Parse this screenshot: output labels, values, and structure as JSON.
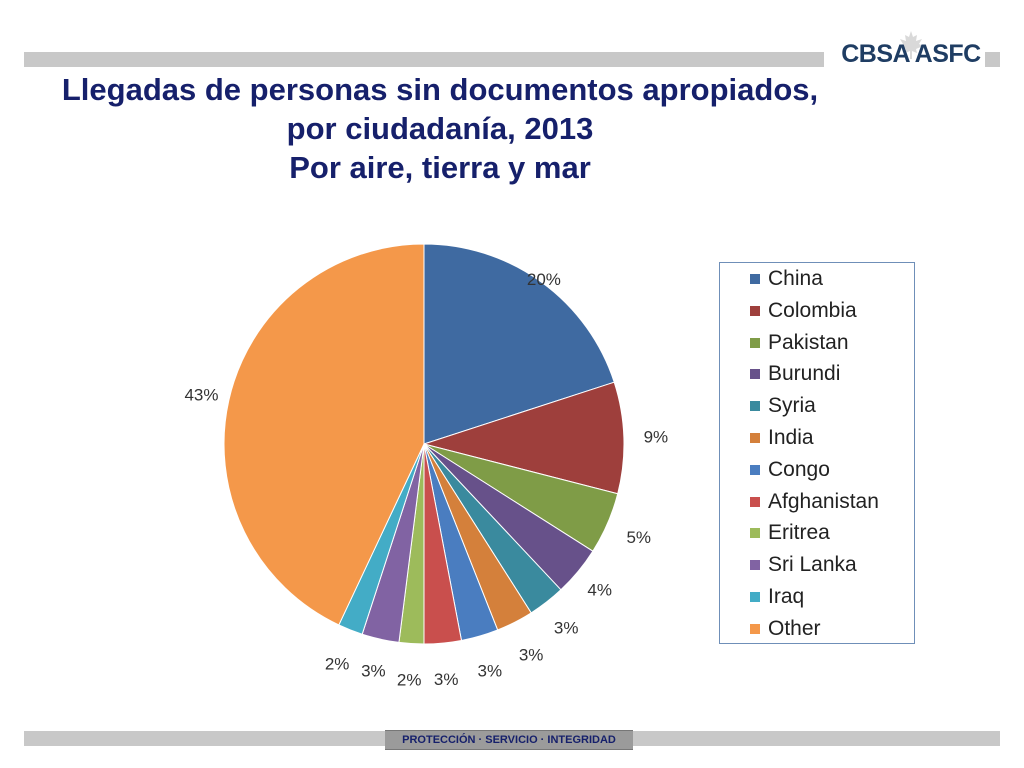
{
  "header": {
    "logo_text": "CBSA ASFC",
    "logo_icon": "maple-leaf-icon"
  },
  "title_lines": [
    "Llegadas de personas sin documentos apropiados,",
    "por ciudadanía, 2013",
    "Por aire, tierra y mar"
  ],
  "footer": {
    "motto": "PROTECCIÓN · SERVICIO · INTEGRIDAD"
  },
  "chart_data": {
    "type": "pie",
    "title": "Llegadas de personas sin documentos apropiados, por ciudadanía, 2013 Por aire, tierra y mar",
    "legend_position": "right",
    "slices": [
      {
        "name": "China",
        "value": 20,
        "label": "20%",
        "color": "#3f6aa1"
      },
      {
        "name": "Colombia",
        "value": 9,
        "label": "9%",
        "color": "#9e3f3c"
      },
      {
        "name": "Pakistan",
        "value": 5,
        "label": "5%",
        "color": "#7f9c47"
      },
      {
        "name": "Burundi",
        "value": 4,
        "label": "4%",
        "color": "#67518a"
      },
      {
        "name": "Syria",
        "value": 3,
        "label": "3%",
        "color": "#3a8a9e"
      },
      {
        "name": "India",
        "value": 3,
        "label": "3%",
        "color": "#d4803b"
      },
      {
        "name": "Congo",
        "value": 3,
        "label": "3%",
        "color": "#4a7dc0"
      },
      {
        "name": "Afghanistan",
        "value": 3,
        "label": "3%",
        "color": "#c94f4d"
      },
      {
        "name": "Eritrea",
        "value": 2,
        "label": "2%",
        "color": "#9dbb5b"
      },
      {
        "name": "Sri Lanka",
        "value": 3,
        "label": "3%",
        "color": "#8163a3"
      },
      {
        "name": "Iraq",
        "value": 2,
        "label": "2%",
        "color": "#43acc6"
      },
      {
        "name": "Other",
        "value": 43,
        "label": "43%",
        "color": "#f4984a"
      }
    ]
  }
}
